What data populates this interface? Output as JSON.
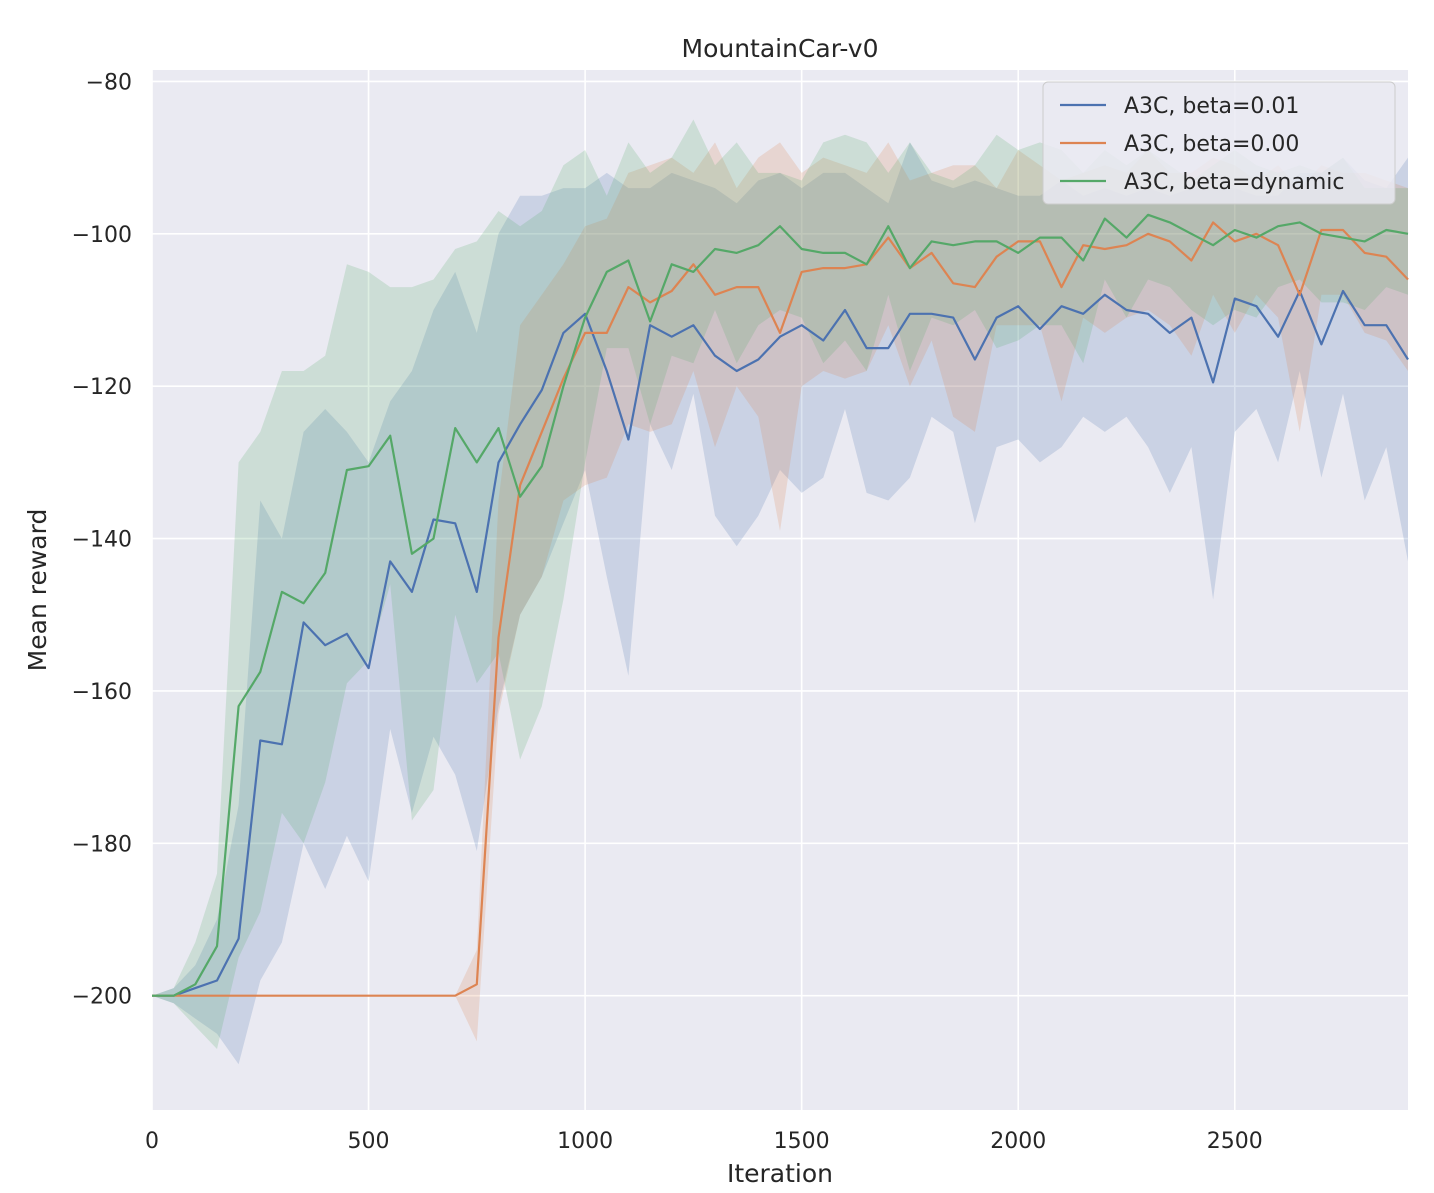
{
  "chart_data": {
    "type": "line",
    "title": "MountainCar-v0",
    "xlabel": "Iteration",
    "ylabel": "Mean reward",
    "xlim": [
      0,
      2900
    ],
    "ylim": [
      -215,
      -78.5
    ],
    "xticks": [
      0,
      500,
      1000,
      1500,
      2000,
      2500
    ],
    "yticks": [
      -200,
      -180,
      -160,
      -140,
      -120,
      -100,
      -80
    ],
    "grid": true,
    "legend_position": "top-right",
    "background_color": "#eaeaf2",
    "x": [
      0,
      50,
      100,
      150,
      200,
      250,
      300,
      350,
      400,
      450,
      500,
      550,
      600,
      650,
      700,
      750,
      800,
      850,
      900,
      950,
      1000,
      1050,
      1100,
      1150,
      1200,
      1250,
      1300,
      1350,
      1400,
      1450,
      1500,
      1550,
      1600,
      1650,
      1700,
      1750,
      1800,
      1850,
      1900,
      1950,
      2000,
      2050,
      2100,
      2150,
      2200,
      2250,
      2300,
      2350,
      2400,
      2450,
      2500,
      2550,
      2600,
      2650,
      2700,
      2750,
      2800,
      2850,
      2900
    ],
    "series": [
      {
        "name": "A3C, beta=0.01",
        "color": "#4c72b0",
        "values": [
          -200,
          -200,
          -199,
          -198,
          -192.5,
          -166.5,
          -167,
          -151,
          -154,
          -152.5,
          -157,
          -143,
          -147,
          -137.5,
          -138,
          -147,
          -130,
          -125,
          -120.5,
          -113,
          -110.5,
          -118,
          -127,
          -112,
          -113.5,
          -112,
          -116,
          -118,
          -116.5,
          -113.5,
          -112,
          -114,
          -110,
          -115,
          -115,
          -110.5,
          -110.5,
          -111,
          -116.5,
          -111,
          -109.5,
          -112.5,
          -109.5,
          -110.5,
          -108,
          -110,
          -110.5,
          -113,
          -111,
          -119.5,
          -108.5,
          -109.5,
          -113.5,
          -107.5,
          -114.5,
          -107.5,
          -112,
          -112,
          -116.5
        ],
        "upper": [
          -200,
          -199,
          -196,
          -190,
          -175,
          -135,
          -140,
          -126,
          -123,
          -126,
          -130,
          -122,
          -118,
          -110,
          -105,
          -113,
          -100,
          -95,
          -95,
          -94,
          -94,
          -92,
          -94,
          -94,
          -92,
          -93,
          -94,
          -96,
          -93,
          -92,
          -94,
          -92,
          -92,
          -94,
          -96,
          -88,
          -93,
          -94,
          -93,
          -94,
          -95,
          -95,
          -93,
          -95,
          -94,
          -95,
          -94,
          -95,
          -94,
          -94,
          -94,
          -95,
          -95,
          -92,
          -92,
          -90,
          -93,
          -94,
          -90
        ],
        "lower": [
          -200,
          -201,
          -203,
          -205,
          -209,
          -198,
          -193,
          -180,
          -186,
          -179,
          -185,
          -165,
          -176,
          -166,
          -171,
          -181,
          -162,
          -150,
          -145,
          -138,
          -131,
          -145,
          -158,
          -125,
          -131,
          -121,
          -137,
          -141,
          -137,
          -131,
          -134,
          -132,
          -123,
          -134,
          -135,
          -132,
          -124,
          -126,
          -138,
          -128,
          -127,
          -130,
          -128,
          -124,
          -126,
          -124,
          -128,
          -134,
          -128,
          -148,
          -126,
          -123,
          -130,
          -118,
          -132,
          -121,
          -135,
          -128,
          -143
        ]
      },
      {
        "name": "A3C, beta=0.00",
        "color": "#dd8452",
        "values": [
          -200,
          -200,
          -200,
          -200,
          -200,
          -200,
          -200,
          -200,
          -200,
          -200,
          -200,
          -200,
          -200,
          -200,
          -200,
          -198.5,
          -153,
          -133,
          -126,
          -119,
          -113,
          -113,
          -107,
          -109,
          -107.5,
          -104,
          -108,
          -107,
          -107,
          -113,
          -105,
          -104.5,
          -104.5,
          -104,
          -100.5,
          -104.5,
          -102.5,
          -106.5,
          -107,
          -103,
          -101,
          -101,
          -107,
          -101.5,
          -102,
          -101.5,
          -100,
          -101,
          -103.5,
          -98.5,
          -101,
          -100,
          -101.5,
          -108,
          -99.5,
          -99.5,
          -102.5,
          -103,
          -106
        ],
        "upper": [
          -200,
          -200,
          -200,
          -200,
          -200,
          -200,
          -200,
          -200,
          -200,
          -200,
          -200,
          -200,
          -200,
          -200,
          -200,
          -194,
          -135,
          -112,
          -108,
          -104,
          -99,
          -98,
          -92,
          -91,
          -90,
          -92,
          -88,
          -94,
          -90,
          -88,
          -92,
          -90,
          -91,
          -92,
          -88,
          -93,
          -92,
          -91,
          -91,
          -94,
          -89,
          -91,
          -93,
          -92,
          -91,
          -92,
          -89,
          -92,
          -92,
          -90,
          -91,
          -93,
          -91,
          -94,
          -91,
          -92,
          -92,
          -93,
          -94
        ],
        "lower": [
          -200,
          -200,
          -200,
          -200,
          -200,
          -200,
          -200,
          -200,
          -200,
          -200,
          -200,
          -200,
          -200,
          -200,
          -200,
          -206,
          -163,
          -150,
          -145,
          -135,
          -133,
          -132,
          -125,
          -126,
          -125,
          -118,
          -128,
          -120,
          -124,
          -139,
          -120,
          -118,
          -119,
          -118,
          -112,
          -120,
          -114,
          -124,
          -126,
          -112,
          -112,
          -112,
          -122,
          -111,
          -113,
          -111,
          -110,
          -112,
          -116,
          -108,
          -113,
          -108,
          -111,
          -126,
          -108,
          -108,
          -113,
          -114,
          -118
        ]
      },
      {
        "name": "A3C, beta=dynamic",
        "color": "#55a868",
        "values": [
          -200,
          -200,
          -198.5,
          -193.5,
          -162,
          -157.5,
          -147,
          -148.5,
          -144.5,
          -131,
          -130.5,
          -126.5,
          -142,
          -140,
          -125.5,
          -130,
          -125.5,
          -134.5,
          -130.5,
          -120,
          -111,
          -105,
          -103.5,
          -111.5,
          -104,
          -105,
          -102,
          -102.5,
          -101.5,
          -99,
          -102,
          -102.5,
          -102.5,
          -104,
          -99,
          -104.5,
          -101,
          -101.5,
          -101,
          -101,
          -102.5,
          -100.5,
          -100.5,
          -103.5,
          -98,
          -100.5,
          -97.5,
          -98.5,
          -100,
          -101.5,
          -99.5,
          -100.5,
          -99,
          -98.5,
          -100,
          -100.5,
          -101,
          -99.5,
          -100
        ],
        "upper": [
          -200,
          -199,
          -193,
          -184,
          -130,
          -126,
          -118,
          -118,
          -116,
          -104,
          -105,
          -107,
          -107,
          -106,
          -102,
          -101,
          -97,
          -99,
          -97,
          -91,
          -89,
          -95,
          -88,
          -92,
          -90,
          -85,
          -91,
          -88,
          -92,
          -92,
          -93,
          -88,
          -87,
          -88,
          -92,
          -88,
          -92,
          -93,
          -91,
          -87,
          -89,
          -88,
          -89,
          -92,
          -89,
          -91,
          -89,
          -91,
          -93,
          -91,
          -89,
          -91,
          -92,
          -91,
          -92,
          -90,
          -94,
          -94,
          -94
        ],
        "lower": [
          -200,
          -201,
          -204,
          -207,
          -195,
          -189,
          -176,
          -180,
          -172,
          -159,
          -156,
          -146,
          -177,
          -173,
          -150,
          -159,
          -155,
          -169,
          -162,
          -148,
          -130,
          -115,
          -115,
          -125,
          -116,
          -117,
          -110,
          -117,
          -112,
          -110,
          -111,
          -117,
          -114,
          -118,
          -108,
          -118,
          -111,
          -112,
          -110,
          -115,
          -114,
          -112,
          -112,
          -117,
          -106,
          -111,
          -106,
          -107,
          -110,
          -112,
          -110,
          -111,
          -107,
          -106,
          -109,
          -109,
          -110,
          -107,
          -108
        ]
      }
    ]
  }
}
